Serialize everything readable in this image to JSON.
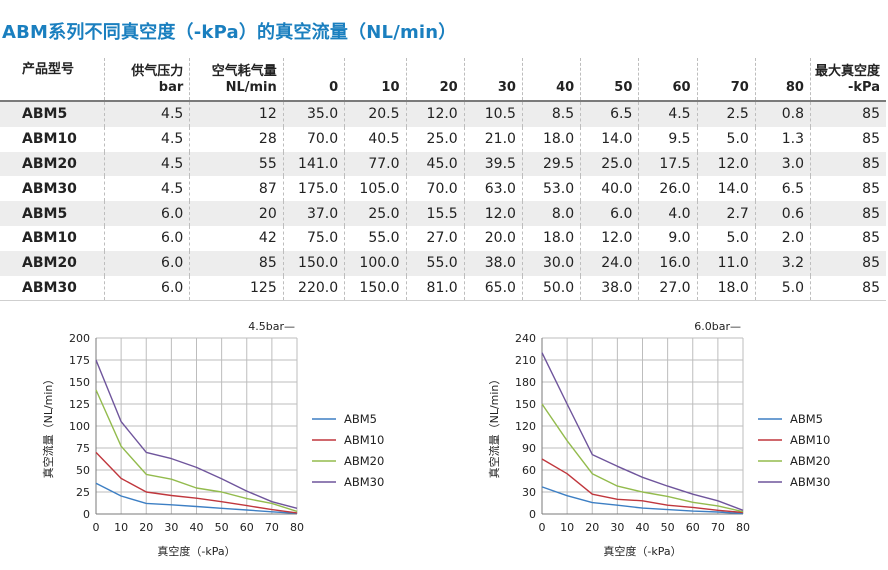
{
  "title": "ABM系列不同真空度（-kPa）的真空流量（NL/min）",
  "table": {
    "headers": [
      [
        "产品型号"
      ],
      [
        "供气压力",
        "bar"
      ],
      [
        "空气耗气量",
        "NL/min"
      ],
      [
        "0"
      ],
      [
        "10"
      ],
      [
        "20"
      ],
      [
        "30"
      ],
      [
        "40"
      ],
      [
        "50"
      ],
      [
        "60"
      ],
      [
        "70"
      ],
      [
        "80"
      ],
      [
        "最大真空度",
        "-kPa"
      ]
    ],
    "rows": [
      [
        "ABM5",
        "4.5",
        "12",
        "35.0",
        "20.5",
        "12.0",
        "10.5",
        "8.5",
        "6.5",
        "4.5",
        "2.5",
        "0.8",
        "85"
      ],
      [
        "ABM10",
        "4.5",
        "28",
        "70.0",
        "40.5",
        "25.0",
        "21.0",
        "18.0",
        "14.0",
        "9.5",
        "5.0",
        "1.3",
        "85"
      ],
      [
        "ABM20",
        "4.5",
        "55",
        "141.0",
        "77.0",
        "45.0",
        "39.5",
        "29.5",
        "25.0",
        "17.5",
        "12.0",
        "3.0",
        "85"
      ],
      [
        "ABM30",
        "4.5",
        "87",
        "175.0",
        "105.0",
        "70.0",
        "63.0",
        "53.0",
        "40.0",
        "26.0",
        "14.0",
        "6.5",
        "85"
      ],
      [
        "ABM5",
        "6.0",
        "20",
        "37.0",
        "25.0",
        "15.5",
        "12.0",
        "8.0",
        "6.0",
        "4.0",
        "2.7",
        "0.6",
        "85"
      ],
      [
        "ABM10",
        "6.0",
        "42",
        "75.0",
        "55.0",
        "27.0",
        "20.0",
        "18.0",
        "12.0",
        "9.0",
        "5.0",
        "2.0",
        "85"
      ],
      [
        "ABM20",
        "6.0",
        "85",
        "150.0",
        "100.0",
        "55.0",
        "38.0",
        "30.0",
        "24.0",
        "16.0",
        "11.0",
        "3.2",
        "85"
      ],
      [
        "ABM30",
        "6.0",
        "125",
        "220.0",
        "150.0",
        "81.0",
        "65.0",
        "50.0",
        "38.0",
        "27.0",
        "18.0",
        "5.0",
        "85"
      ]
    ]
  },
  "chart_data": [
    {
      "type": "line",
      "title": "4.5bar—",
      "xlabel": "真空度（-kPa）",
      "ylabel": "真空流量（NL/min）",
      "x": [
        0,
        10,
        20,
        30,
        40,
        50,
        60,
        70,
        80
      ],
      "xlim": [
        0,
        80
      ],
      "ylim": [
        0,
        200
      ],
      "yticks": [
        0,
        25,
        50,
        75,
        100,
        125,
        150,
        175,
        200
      ],
      "grid": true,
      "legend": "right",
      "series": [
        {
          "name": "ABM5",
          "color": "#3d7fc4",
          "values": [
            35.0,
            20.5,
            12.0,
            10.5,
            8.5,
            6.5,
            4.5,
            2.5,
            0.8
          ]
        },
        {
          "name": "ABM10",
          "color": "#c0373d",
          "values": [
            70.0,
            40.5,
            25.0,
            21.0,
            18.0,
            14.0,
            9.5,
            5.0,
            1.3
          ]
        },
        {
          "name": "ABM20",
          "color": "#93bb4d",
          "values": [
            141.0,
            77.0,
            45.0,
            39.5,
            29.5,
            25.0,
            17.5,
            12.0,
            3.0
          ]
        },
        {
          "name": "ABM30",
          "color": "#6f559c",
          "values": [
            175.0,
            105.0,
            70.0,
            63.0,
            53.0,
            40.0,
            26.0,
            14.0,
            6.5
          ]
        }
      ]
    },
    {
      "type": "line",
      "title": "6.0bar—",
      "xlabel": "真空度（-kPa）",
      "ylabel": "真空流量（NL/min）",
      "x": [
        0,
        10,
        20,
        30,
        40,
        50,
        60,
        70,
        80
      ],
      "xlim": [
        0,
        80
      ],
      "ylim": [
        0,
        240
      ],
      "yticks": [
        0,
        30,
        60,
        90,
        120,
        150,
        180,
        210,
        240
      ],
      "grid": true,
      "legend": "right",
      "series": [
        {
          "name": "ABM5",
          "color": "#3d7fc4",
          "values": [
            37.0,
            25.0,
            15.5,
            12.0,
            8.0,
            6.0,
            4.0,
            2.7,
            0.6
          ]
        },
        {
          "name": "ABM10",
          "color": "#c0373d",
          "values": [
            75.0,
            55.0,
            27.0,
            20.0,
            18.0,
            12.0,
            9.0,
            5.0,
            2.0
          ]
        },
        {
          "name": "ABM20",
          "color": "#93bb4d",
          "values": [
            150.0,
            100.0,
            55.0,
            38.0,
            30.0,
            24.0,
            16.0,
            11.0,
            3.2
          ]
        },
        {
          "name": "ABM30",
          "color": "#6f559c",
          "values": [
            220.0,
            150.0,
            81.0,
            65.0,
            50.0,
            38.0,
            27.0,
            18.0,
            5.0
          ]
        }
      ]
    }
  ]
}
